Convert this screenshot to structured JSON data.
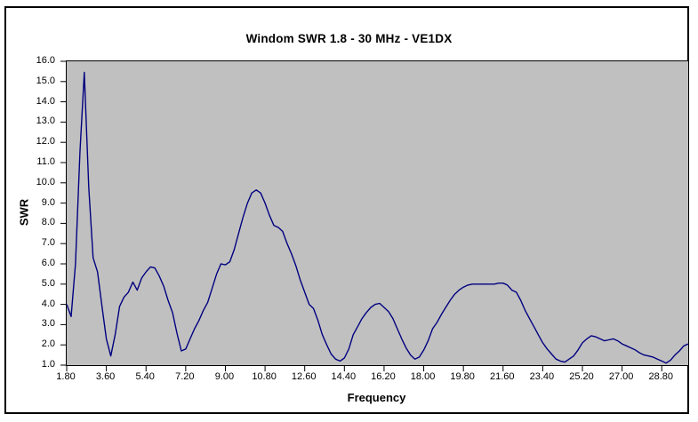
{
  "chart": {
    "title": "Windom SWR 1.8 - 30 MHz - VE1DX",
    "x_axis_label": "Frequency",
    "y_axis_label": "SWR",
    "colors": {
      "line": "#000080",
      "plot_background": "#c0c0c0",
      "page_background": "#ffffff",
      "border": "#000000",
      "text": "#000000"
    }
  },
  "chart_data": {
    "type": "line",
    "title": "Windom SWR 1.8 - 30 MHz - VE1DX",
    "xlabel": "Frequency",
    "ylabel": "SWR",
    "xlim": [
      1.8,
      30.0
    ],
    "ylim": [
      1.0,
      16.0
    ],
    "grid": false,
    "legend": false,
    "x_tick_labels": [
      "1.80",
      "3.60",
      "5.40",
      "7.20",
      "9.00",
      "10.80",
      "12.60",
      "14.40",
      "16.20",
      "18.00",
      "19.80",
      "21.60",
      "23.40",
      "25.20",
      "27.00",
      "28.80"
    ],
    "y_tick_labels": [
      "16.0",
      "15.0",
      "14.0",
      "13.0",
      "12.0",
      "11.0",
      "10.0",
      "9.0",
      "8.0",
      "7.0",
      "6.0",
      "5.0",
      "4.0",
      "3.0",
      "2.0",
      "1.0"
    ],
    "series": [
      {
        "name": "SWR",
        "x": [
          1.8,
          2.0,
          2.2,
          2.4,
          2.6,
          2.8,
          3.0,
          3.2,
          3.4,
          3.6,
          3.8,
          4.0,
          4.2,
          4.4,
          4.6,
          4.8,
          5.0,
          5.2,
          5.4,
          5.6,
          5.8,
          6.0,
          6.2,
          6.4,
          6.6,
          6.8,
          7.0,
          7.2,
          7.4,
          7.6,
          7.8,
          8.0,
          8.2,
          8.4,
          8.6,
          8.8,
          9.0,
          9.2,
          9.4,
          9.6,
          9.8,
          10.0,
          10.2,
          10.4,
          10.6,
          10.8,
          11.0,
          11.2,
          11.4,
          11.6,
          11.8,
          12.0,
          12.2,
          12.4,
          12.6,
          12.8,
          13.0,
          13.2,
          13.4,
          13.6,
          13.8,
          14.0,
          14.2,
          14.4,
          14.6,
          14.8,
          15.0,
          15.2,
          15.4,
          15.6,
          15.8,
          16.0,
          16.2,
          16.4,
          16.6,
          16.8,
          17.0,
          17.2,
          17.4,
          17.6,
          17.8,
          18.0,
          18.2,
          18.4,
          18.6,
          18.8,
          19.0,
          19.2,
          19.4,
          19.6,
          19.8,
          20.0,
          20.2,
          20.4,
          20.6,
          20.8,
          21.0,
          21.2,
          21.4,
          21.6,
          21.8,
          22.0,
          22.2,
          22.4,
          22.6,
          22.8,
          23.0,
          23.2,
          23.4,
          23.6,
          23.8,
          24.0,
          24.2,
          24.4,
          24.6,
          24.8,
          25.0,
          25.2,
          25.4,
          25.6,
          25.8,
          26.0,
          26.2,
          26.4,
          26.6,
          26.8,
          27.0,
          27.2,
          27.4,
          27.6,
          27.8,
          28.0,
          28.2,
          28.4,
          28.6,
          28.8,
          29.0,
          29.2,
          29.4,
          29.6,
          29.8,
          30.0
        ],
        "values": [
          4.0,
          3.4,
          6.0,
          11.5,
          15.45,
          9.8,
          6.3,
          5.6,
          3.9,
          2.3,
          1.45,
          2.5,
          3.9,
          4.35,
          4.6,
          5.1,
          4.7,
          5.3,
          5.6,
          5.85,
          5.8,
          5.4,
          4.9,
          4.2,
          3.6,
          2.6,
          1.7,
          1.8,
          2.3,
          2.8,
          3.2,
          3.7,
          4.1,
          4.8,
          5.5,
          6.0,
          5.95,
          6.1,
          6.7,
          7.5,
          8.3,
          9.0,
          9.5,
          9.65,
          9.5,
          9.0,
          8.4,
          7.9,
          7.8,
          7.6,
          7.0,
          6.5,
          5.9,
          5.2,
          4.6,
          4.0,
          3.8,
          3.2,
          2.5,
          2.0,
          1.55,
          1.3,
          1.2,
          1.35,
          1.8,
          2.5,
          2.9,
          3.3,
          3.6,
          3.85,
          4.0,
          4.05,
          3.85,
          3.65,
          3.3,
          2.8,
          2.3,
          1.85,
          1.5,
          1.3,
          1.4,
          1.75,
          2.2,
          2.8,
          3.1,
          3.5,
          3.85,
          4.2,
          4.5,
          4.7,
          4.85,
          4.95,
          5.0,
          5.0,
          5.0,
          5.0,
          5.0,
          5.0,
          5.05,
          5.05,
          4.95,
          4.7,
          4.6,
          4.2,
          3.7,
          3.3,
          2.9,
          2.5,
          2.1,
          1.8,
          1.55,
          1.3,
          1.2,
          1.15,
          1.3,
          1.45,
          1.75,
          2.1,
          2.3,
          2.45,
          2.4,
          2.3,
          2.2,
          2.25,
          2.3,
          2.2,
          2.05,
          1.95,
          1.85,
          1.75,
          1.6,
          1.5,
          1.45,
          1.4,
          1.3,
          1.2,
          1.1,
          1.25,
          1.5,
          1.7,
          1.95,
          2.05
        ]
      }
    ]
  }
}
